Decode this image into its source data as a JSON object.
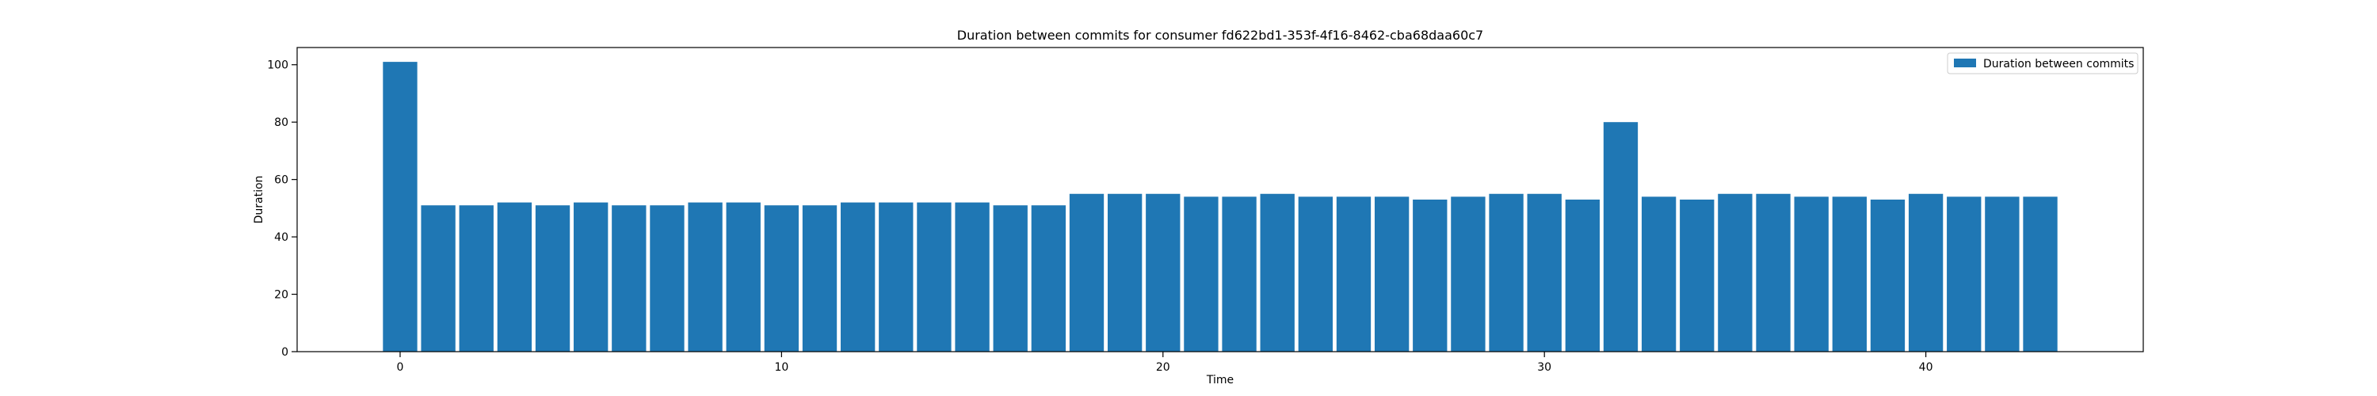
{
  "chart_data": {
    "type": "bar",
    "title": "Duration between commits for consumer fd622bd1-353f-4f16-8462-cba68daa60c7",
    "xlabel": "Time",
    "ylabel": "Duration",
    "xlim": [
      -2.7,
      45.7
    ],
    "ylim": [
      0,
      106
    ],
    "xticks": [
      0,
      10,
      20,
      30,
      40
    ],
    "yticks": [
      0,
      20,
      40,
      60,
      80,
      100
    ],
    "legend": {
      "position": "top-right",
      "entries": [
        "Duration between commits"
      ]
    },
    "bar_color": "#1f77b4",
    "series": [
      {
        "name": "Duration between commits",
        "x": [
          0,
          1,
          2,
          3,
          4,
          5,
          6,
          7,
          8,
          9,
          10,
          11,
          12,
          13,
          14,
          15,
          16,
          17,
          18,
          19,
          20,
          21,
          22,
          23,
          24,
          25,
          26,
          27,
          28,
          29,
          30,
          31,
          32,
          33,
          34,
          35,
          36,
          37,
          38,
          39,
          40,
          41,
          42,
          43
        ],
        "values": [
          101,
          51,
          51,
          52,
          51,
          52,
          51,
          51,
          52,
          52,
          51,
          51,
          52,
          52,
          52,
          52,
          51,
          51,
          55,
          55,
          55,
          54,
          54,
          55,
          54,
          54,
          54,
          53,
          54,
          55,
          55,
          53,
          80,
          54,
          53,
          55,
          55,
          54,
          54,
          53,
          55,
          54,
          54,
          54
        ]
      }
    ]
  }
}
